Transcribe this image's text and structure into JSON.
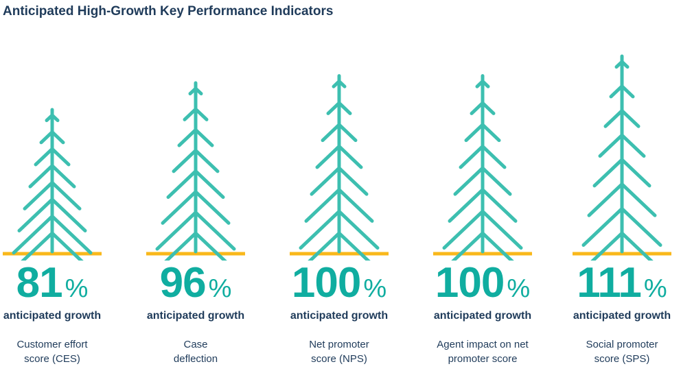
{
  "title": "Anticipated High-Growth Key Performance Indicators",
  "colors": {
    "tree": "#3dbfb0",
    "ground": "#f9b81b",
    "value": "#10ada0",
    "text": "#1f3b5a"
  },
  "chart_data": {
    "type": "bar",
    "title": "Anticipated High-Growth Key Performance Indicators",
    "value_suffix": "%",
    "value_label": "anticipated growth",
    "categories": [
      "Customer effort\nscore (CES)",
      "Case\ndeflection",
      "Net promoter\nscore (NPS)",
      "Agent impact on net\npromoter score",
      "Social promoter\nscore (SPS)"
    ],
    "values": [
      81,
      96,
      100,
      100,
      111
    ]
  }
}
